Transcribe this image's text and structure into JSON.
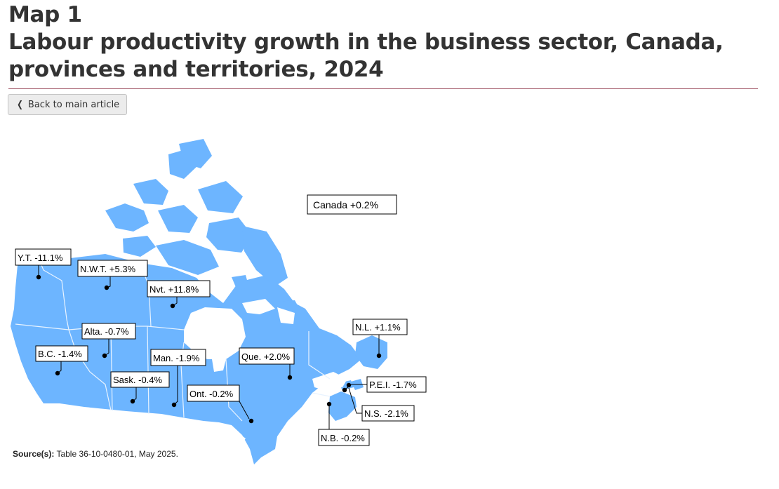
{
  "header": {
    "map_number": "Map 1",
    "title_line1": "Labour productivity growth in the business sector, Canada,",
    "title_line2": "provinces and territories, 2024"
  },
  "nav": {
    "back_label": "Back to main article",
    "back_icon": "chevron-left-icon"
  },
  "colors": {
    "land": "#6db5ff",
    "water": "#ffffff",
    "border": "#e8f3ff",
    "rule": "#a35a6a"
  },
  "map": {
    "canada_label": "Canada +0.2%",
    "labels": [
      {
        "id": "yt",
        "text": "Y.T. -11.1%"
      },
      {
        "id": "nwt",
        "text": "N.W.T. +5.3%"
      },
      {
        "id": "nvt",
        "text": "Nvt. +11.8%"
      },
      {
        "id": "alta",
        "text": "Alta. -0.7%"
      },
      {
        "id": "bc",
        "text": "B.C. -1.4%"
      },
      {
        "id": "man",
        "text": "Man. -1.9%"
      },
      {
        "id": "sask",
        "text": "Sask. -0.4%"
      },
      {
        "id": "ont",
        "text": "Ont. -0.2%"
      },
      {
        "id": "que",
        "text": "Que. +2.0%"
      },
      {
        "id": "nl",
        "text": "N.L. +1.1%"
      },
      {
        "id": "pei",
        "text": "P.E.I. -1.7%"
      },
      {
        "id": "ns",
        "text": "N.S. -2.1%"
      },
      {
        "id": "nb",
        "text": "N.B. -0.2%"
      }
    ]
  },
  "source": {
    "label": "Source(s):",
    "text": " Table 36-10-0480-01, May 2025."
  }
}
